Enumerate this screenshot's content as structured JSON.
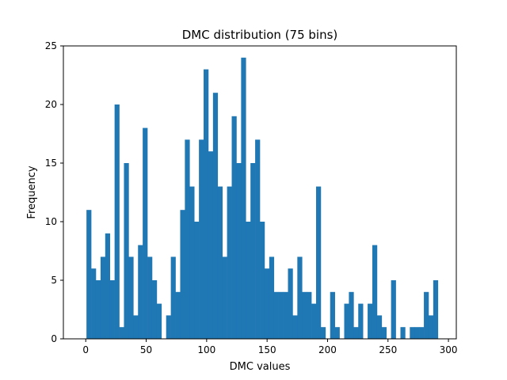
{
  "chart_data": {
    "type": "bar",
    "title": "DMC distribution (75 bins)",
    "xlabel": "DMC values",
    "ylabel": "Frequency",
    "xlim": [
      -18.5,
      306.5
    ],
    "ylim": [
      0,
      25
    ],
    "xticks": [
      0,
      50,
      100,
      150,
      200,
      250,
      300
    ],
    "yticks": [
      0,
      5,
      10,
      15,
      20,
      25
    ],
    "bin_start": 0.6,
    "bin_end": 291.3,
    "bar_color": "#1f77b4",
    "grid": false,
    "values": [
      11,
      6,
      5,
      7,
      9,
      5,
      20,
      1,
      15,
      7,
      2,
      8,
      18,
      7,
      5,
      3,
      0,
      2,
      7,
      4,
      11,
      17,
      13,
      10,
      17,
      23,
      16,
      21,
      13,
      7,
      13,
      19,
      15,
      24,
      10,
      15,
      17,
      10,
      6,
      7,
      4,
      4,
      4,
      6,
      2,
      7,
      4,
      4,
      3,
      13,
      1,
      0,
      4,
      1,
      0,
      3,
      4,
      1,
      3,
      0,
      3,
      8,
      2,
      1,
      0,
      5,
      0,
      1,
      0,
      1,
      1,
      1,
      4,
      2,
      5
    ]
  }
}
